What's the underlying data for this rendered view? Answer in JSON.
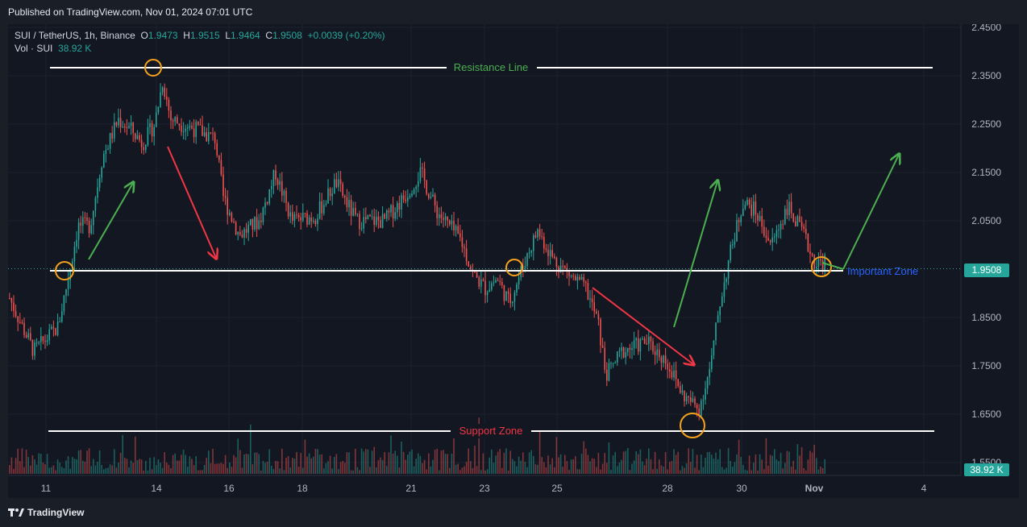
{
  "header": {
    "published": "Published on TradingView.com, Nov 01, 2024 07:01 UTC"
  },
  "legend": {
    "symbol": "SUI / TetherUS, 1h, Binance",
    "o_label": "O",
    "o": "1.9473",
    "h_label": "H",
    "h": "1.9515",
    "l_label": "L",
    "l": "1.9464",
    "c_label": "C",
    "c": "1.9508",
    "change": "+0.0039 (+0.20%)",
    "vol_label": "Vol · SUI",
    "vol": "38.92 K"
  },
  "footer": {
    "brand": "TradingView"
  },
  "colors": {
    "up": "#26a69a",
    "down": "#ef5350",
    "line": "#ffffff",
    "bg": "#131722",
    "orange": "#f7a21b",
    "green_arrow": "#4caf50",
    "red_arrow": "#f23645",
    "blue_text": "#2962ff"
  },
  "chart_data": {
    "type": "candlestick",
    "y_axis": {
      "range": [
        1.53,
        2.48
      ],
      "ticks": [
        "2.4500",
        "2.3500",
        "2.2500",
        "2.1500",
        "2.0500",
        "1.9508",
        "1.8500",
        "1.7500",
        "1.6500",
        "1.5500"
      ]
    },
    "x_axis": {
      "ticks": [
        "11",
        "14",
        "16",
        "18",
        "21",
        "23",
        "25",
        "28",
        "30",
        "Nov",
        "4"
      ]
    },
    "price_label": "1.9508",
    "volume_label": "38.92 K",
    "annotations": {
      "resistance_label": "Resistance Line",
      "support_label": "Support Zone",
      "important_label": "Important Zone"
    },
    "price_path": [
      {
        "x": 0,
        "y": 1.89
      },
      {
        "x": 30,
        "y": 1.78
      },
      {
        "x": 60,
        "y": 1.83
      },
      {
        "x": 75,
        "y": 1.95
      },
      {
        "x": 85,
        "y": 2.04
      },
      {
        "x": 100,
        "y": 2.04
      },
      {
        "x": 115,
        "y": 2.18
      },
      {
        "x": 135,
        "y": 2.26
      },
      {
        "x": 150,
        "y": 2.24
      },
      {
        "x": 165,
        "y": 2.21
      },
      {
        "x": 180,
        "y": 2.25
      },
      {
        "x": 190,
        "y": 2.34
      },
      {
        "x": 200,
        "y": 2.26
      },
      {
        "x": 230,
        "y": 2.24
      },
      {
        "x": 255,
        "y": 2.22
      },
      {
        "x": 265,
        "y": 2.1
      },
      {
        "x": 285,
        "y": 2.02
      },
      {
        "x": 310,
        "y": 2.05
      },
      {
        "x": 330,
        "y": 2.15
      },
      {
        "x": 350,
        "y": 2.05
      },
      {
        "x": 380,
        "y": 2.06
      },
      {
        "x": 405,
        "y": 2.13
      },
      {
        "x": 430,
        "y": 2.05
      },
      {
        "x": 465,
        "y": 2.05
      },
      {
        "x": 490,
        "y": 2.1
      },
      {
        "x": 510,
        "y": 2.15
      },
      {
        "x": 530,
        "y": 2.07
      },
      {
        "x": 560,
        "y": 2.01
      },
      {
        "x": 575,
        "y": 1.94
      },
      {
        "x": 590,
        "y": 1.91
      },
      {
        "x": 605,
        "y": 1.93
      },
      {
        "x": 620,
        "y": 1.88
      },
      {
        "x": 640,
        "y": 1.97
      },
      {
        "x": 655,
        "y": 2.03
      },
      {
        "x": 675,
        "y": 1.97
      },
      {
        "x": 700,
        "y": 1.93
      },
      {
        "x": 715,
        "y": 1.91
      },
      {
        "x": 730,
        "y": 1.84
      },
      {
        "x": 740,
        "y": 1.73
      },
      {
        "x": 760,
        "y": 1.78
      },
      {
        "x": 790,
        "y": 1.8
      },
      {
        "x": 815,
        "y": 1.76
      },
      {
        "x": 835,
        "y": 1.69
      },
      {
        "x": 855,
        "y": 1.66
      },
      {
        "x": 870,
        "y": 1.75
      },
      {
        "x": 880,
        "y": 1.87
      },
      {
        "x": 895,
        "y": 1.99
      },
      {
        "x": 910,
        "y": 2.09
      },
      {
        "x": 925,
        "y": 2.07
      },
      {
        "x": 945,
        "y": 2.0
      },
      {
        "x": 965,
        "y": 2.08
      },
      {
        "x": 985,
        "y": 2.02
      },
      {
        "x": 1000,
        "y": 1.96
      },
      {
        "x": 1015,
        "y": 1.97
      },
      {
        "x": 1023,
        "y": 1.95
      }
    ]
  }
}
